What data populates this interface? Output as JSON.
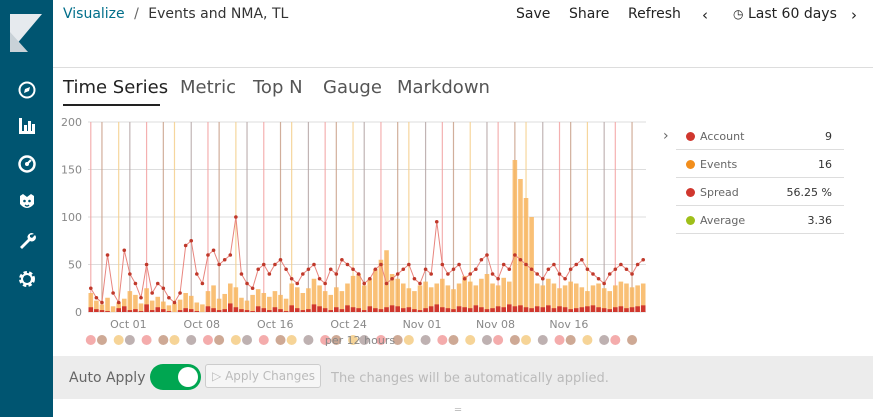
{
  "header": {
    "breadcrumb_root": "Visualize",
    "breadcrumb_sep": "/",
    "breadcrumb_current": "Events and NMA, TL",
    "save_label": "Save",
    "share_label": "Share",
    "refresh_label": "Refresh",
    "time_range_label": "Last 60 days"
  },
  "sidebar": {
    "icons": [
      "kibana-logo",
      "discover-icon",
      "visualize-icon",
      "dashboard-icon",
      "timelion-icon",
      "dev-tools-icon",
      "management-icon"
    ]
  },
  "tabs": [
    {
      "label": "Time Series",
      "active": true
    },
    {
      "label": "Metric",
      "active": false
    },
    {
      "label": "Top N",
      "active": false
    },
    {
      "label": "Gauge",
      "active": false
    },
    {
      "label": "Markdown",
      "active": false
    }
  ],
  "legend": [
    {
      "name": "Account",
      "value": "9",
      "color": "#d0372e"
    },
    {
      "name": "Events",
      "value": "16",
      "color": "#f28e1c"
    },
    {
      "name": "Spread",
      "value": "56.25 %",
      "color": "#d0372e"
    },
    {
      "name": "Average",
      "value": "3.36",
      "color": "#9fbf1a"
    }
  ],
  "footer": {
    "auto_apply_label": "Auto Apply",
    "apply_button_label": "Apply Changes",
    "info_text": "The changes will be automatically applied."
  },
  "chart_data": {
    "type": "bar",
    "x_tick_labels": [
      "Oct 01",
      "Oct 08",
      "Oct 16",
      "Oct 24",
      "Nov 01",
      "Nov 08",
      "Nov 16"
    ],
    "interval_label": "per 12 hours",
    "y_tick_labels": [
      "0",
      "50",
      "100",
      "150",
      "200"
    ],
    "ylim": [
      0,
      200
    ],
    "series": [
      {
        "name": "Account",
        "color": "#d0372e",
        "values": [
          5,
          3,
          2,
          1,
          0,
          4,
          6,
          2,
          3,
          1,
          8,
          2,
          5,
          3,
          1,
          0,
          2,
          4,
          3,
          1,
          0,
          6,
          4,
          2,
          3,
          9,
          5,
          3,
          2,
          1,
          6,
          4,
          2,
          5,
          3,
          1,
          7,
          4,
          2,
          3,
          8,
          6,
          4,
          2,
          5,
          3,
          7,
          5,
          4,
          2,
          6,
          4,
          3,
          5,
          7,
          6,
          4,
          5,
          3,
          2,
          4,
          6,
          8,
          5,
          4,
          3,
          6,
          5,
          4,
          7,
          5,
          3,
          4,
          6,
          5,
          8,
          6,
          7,
          5,
          4,
          6,
          5,
          7,
          4,
          6,
          5,
          3,
          4,
          5,
          6,
          7,
          5,
          4,
          3,
          5,
          6,
          4,
          5,
          6,
          7
        ]
      },
      {
        "name": "Events",
        "color": "#f8b55e",
        "values": [
          20,
          12,
          8,
          15,
          6,
          10,
          14,
          22,
          18,
          9,
          25,
          12,
          16,
          11,
          7,
          9,
          13,
          20,
          17,
          10,
          8,
          22,
          28,
          14,
          19,
          30,
          26,
          15,
          12,
          18,
          24,
          20,
          16,
          22,
          18,
          14,
          30,
          26,
          20,
          25,
          35,
          28,
          22,
          18,
          26,
          22,
          30,
          38,
          40,
          28,
          35,
          45,
          55,
          65,
          40,
          35,
          30,
          25,
          22,
          28,
          32,
          26,
          30,
          35,
          28,
          24,
          30,
          38,
          32,
          28,
          35,
          40,
          30,
          28,
          36,
          32,
          160,
          140,
          120,
          100,
          30,
          28,
          35,
          30,
          25,
          28,
          32,
          30,
          26,
          22,
          28,
          30,
          25,
          22,
          28,
          32,
          30,
          26,
          28,
          30
        ]
      },
      {
        "name": "Spread",
        "color": "#d0372e",
        "values": [
          25,
          15,
          10,
          60,
          20,
          10,
          65,
          40,
          30,
          15,
          50,
          20,
          30,
          25,
          15,
          10,
          20,
          70,
          75,
          40,
          30,
          60,
          65,
          50,
          55,
          60,
          100,
          40,
          30,
          25,
          45,
          50,
          40,
          50,
          55,
          45,
          35,
          30,
          40,
          45,
          50,
          35,
          30,
          45,
          40,
          55,
          50,
          45,
          40,
          30,
          35,
          45,
          50,
          30,
          35,
          40,
          45,
          50,
          35,
          30,
          45,
          40,
          95,
          50,
          40,
          45,
          50,
          35,
          40,
          45,
          55,
          60,
          40,
          35,
          50,
          45,
          60,
          55,
          50,
          45,
          40,
          35,
          45,
          50,
          40,
          35,
          45,
          50,
          55,
          45,
          40,
          35,
          30,
          40,
          45,
          50,
          45,
          40,
          50,
          55
        ]
      }
    ],
    "marker_count": 38
  }
}
